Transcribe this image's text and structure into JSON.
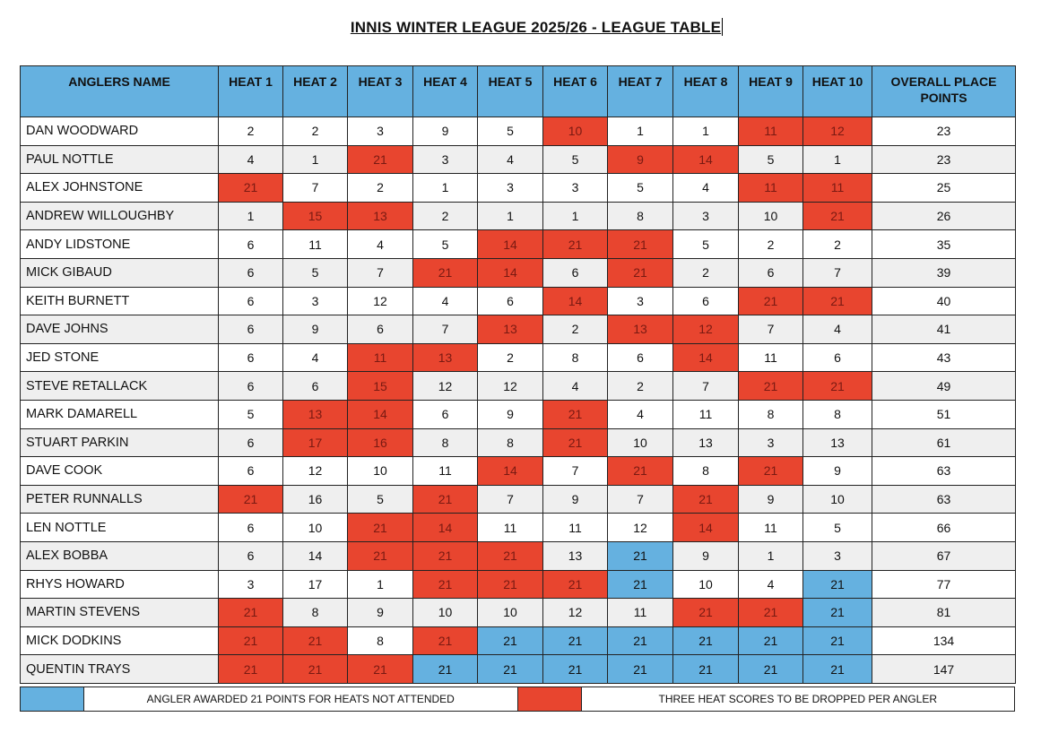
{
  "title": "INNIS WINTER LEAGUE 2025/26 - LEAGUE TABLE",
  "colors": {
    "dropped": "#e8452f",
    "not_attended": "#65b1e0",
    "header": "#65b1e0",
    "alt_row": "#efefef"
  },
  "columns": [
    "ANGLERS NAME",
    "HEAT 1",
    "HEAT 2",
    "HEAT 3",
    "HEAT 4",
    "HEAT 5",
    "HEAT 6",
    "HEAT 7",
    "HEAT 8",
    "HEAT 9",
    "HEAT 10",
    "OVERALL PLACE POINTS"
  ],
  "rows": [
    {
      "name": "DAN WOODWARD",
      "scores": [
        2,
        2,
        3,
        9,
        5,
        10,
        1,
        1,
        11,
        12
      ],
      "marks": "-----r--rr",
      "total": 23
    },
    {
      "name": "PAUL NOTTLE",
      "scores": [
        4,
        1,
        21,
        3,
        4,
        5,
        9,
        14,
        5,
        1
      ],
      "marks": "--r---rr--",
      "total": 23
    },
    {
      "name": "ALEX JOHNSTONE",
      "scores": [
        21,
        7,
        2,
        1,
        3,
        3,
        5,
        4,
        11,
        11
      ],
      "marks": "r-------rr",
      "total": 25
    },
    {
      "name": "ANDREW WILLOUGHBY",
      "scores": [
        1,
        15,
        13,
        2,
        1,
        1,
        8,
        3,
        10,
        21
      ],
      "marks": "-rr------r",
      "total": 26
    },
    {
      "name": "ANDY LIDSTONE",
      "scores": [
        6,
        11,
        4,
        5,
        14,
        21,
        21,
        5,
        2,
        2
      ],
      "marks": "----rrr---",
      "total": 35
    },
    {
      "name": "MICK GIBAUD",
      "scores": [
        6,
        5,
        7,
        21,
        14,
        6,
        21,
        2,
        6,
        7
      ],
      "marks": "---rr-r---",
      "total": 39
    },
    {
      "name": "KEITH BURNETT",
      "scores": [
        6,
        3,
        12,
        4,
        6,
        14,
        3,
        6,
        21,
        21
      ],
      "marks": "-----r--rr",
      "total": 40
    },
    {
      "name": "DAVE JOHNS",
      "scores": [
        6,
        9,
        6,
        7,
        13,
        2,
        13,
        12,
        7,
        4
      ],
      "marks": "----r-rr--",
      "total": 41
    },
    {
      "name": "JED STONE",
      "scores": [
        6,
        4,
        11,
        13,
        2,
        8,
        6,
        14,
        11,
        6
      ],
      "marks": "--rr---r--",
      "total": 43
    },
    {
      "name": "STEVE RETALLACK",
      "scores": [
        6,
        6,
        15,
        12,
        12,
        4,
        2,
        7,
        21,
        21
      ],
      "marks": "--r-----rr",
      "total": 49
    },
    {
      "name": "MARK DAMARELL",
      "scores": [
        5,
        13,
        14,
        6,
        9,
        21,
        4,
        11,
        8,
        8
      ],
      "marks": "-rr--r----",
      "total": 51
    },
    {
      "name": "STUART PARKIN",
      "scores": [
        6,
        17,
        16,
        8,
        8,
        21,
        10,
        13,
        3,
        13
      ],
      "marks": "-rr--r----",
      "total": 61
    },
    {
      "name": "DAVE COOK",
      "scores": [
        6,
        12,
        10,
        11,
        14,
        7,
        21,
        8,
        21,
        9
      ],
      "marks": "----r-r-r-",
      "total": 63
    },
    {
      "name": "PETER RUNNALLS",
      "scores": [
        21,
        16,
        5,
        21,
        7,
        9,
        7,
        21,
        9,
        10
      ],
      "marks": "r--r---r--",
      "total": 63
    },
    {
      "name": "LEN NOTTLE",
      "scores": [
        6,
        10,
        21,
        14,
        11,
        11,
        12,
        14,
        11,
        5
      ],
      "marks": "--rr---r--",
      "total": 66
    },
    {
      "name": "ALEX BOBBA",
      "scores": [
        6,
        14,
        21,
        21,
        21,
        13,
        21,
        9,
        1,
        3
      ],
      "marks": "--rrr-b---",
      "total": 67
    },
    {
      "name": "RHYS HOWARD",
      "scores": [
        3,
        17,
        1,
        21,
        21,
        21,
        21,
        10,
        4,
        21
      ],
      "marks": "---rrrb--b",
      "total": 77
    },
    {
      "name": "MARTIN STEVENS",
      "scores": [
        21,
        8,
        9,
        10,
        10,
        12,
        11,
        21,
        21,
        21
      ],
      "marks": "r------rrb",
      "total": 81
    },
    {
      "name": "MICK DODKINS",
      "scores": [
        21,
        21,
        8,
        21,
        21,
        21,
        21,
        21,
        21,
        21
      ],
      "marks": "rr-rbbbbbb",
      "total": 134
    },
    {
      "name": "QUENTIN TRAYS",
      "scores": [
        21,
        21,
        21,
        21,
        21,
        21,
        21,
        21,
        21,
        21
      ],
      "marks": "rrrbbbbbbb",
      "total": 147
    }
  ],
  "legend": {
    "not_attended": "ANGLER AWARDED 21 POINTS FOR HEATS NOT ATTENDED",
    "dropped": "THREE HEAT SCORES TO BE DROPPED PER ANGLER"
  }
}
